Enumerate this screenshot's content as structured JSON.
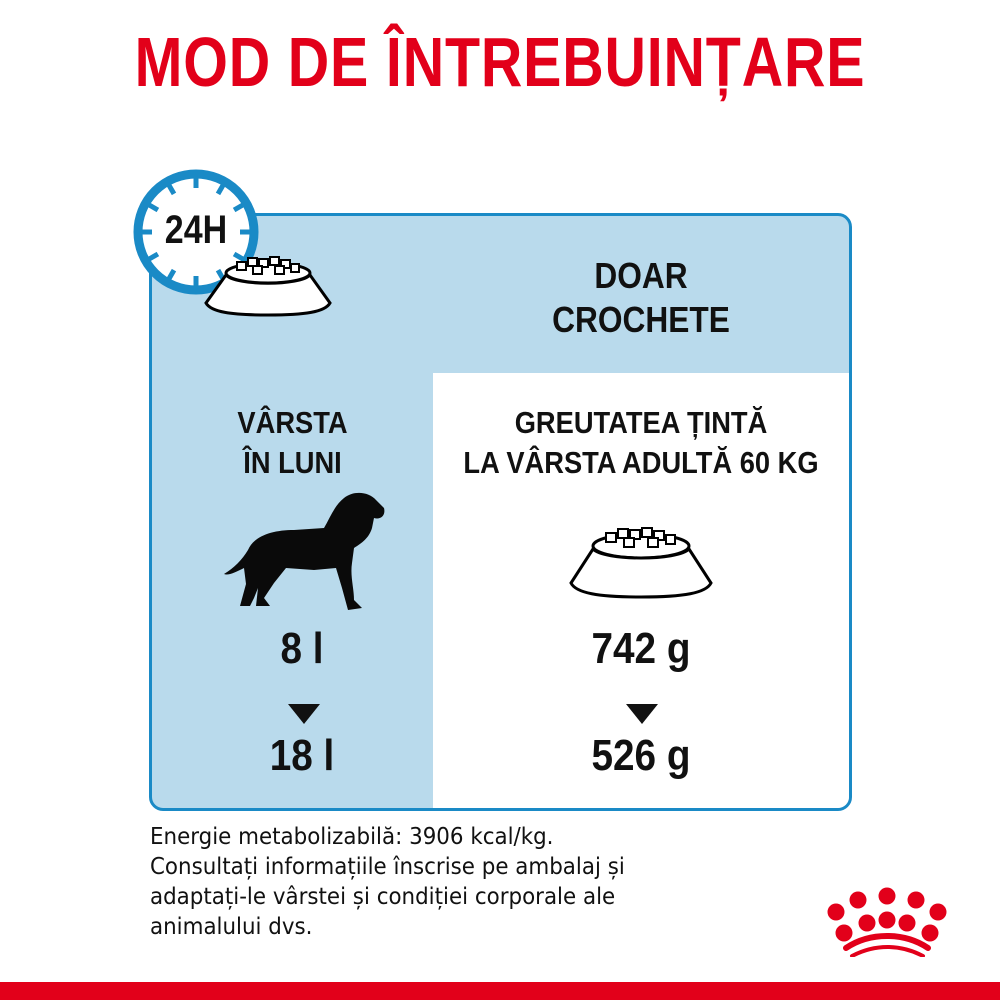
{
  "title": "MOD DE ÎNTREBUINȚARE",
  "clock_label": "24H",
  "food_type": [
    "DOAR",
    "CROCHETE"
  ],
  "age_header": [
    "VÂRSTA",
    "ÎN LUNI"
  ],
  "weight_header": [
    "GREUTATEA ȚINTĂ",
    "LA VÂRSTA ADULTĂ 60 KG"
  ],
  "rows": {
    "age_from": "8 l",
    "age_to": "18 l",
    "amount_from": "742 g",
    "amount_to": "526 g"
  },
  "footer_lines": [
    "Energie metabolizabilă: 3906 kcal/kg.",
    "Consultați informațiile înscrise pe ambalaj și",
    "adaptați-le vârstei și condiției corporale ale",
    "animalului dvs."
  ],
  "colors": {
    "brand_red": "#e2001a",
    "accent_blue": "#1a8ac6",
    "panel_blue": "#b9daec"
  },
  "icons": [
    "clock-24h-icon",
    "food-bowl-icon",
    "dog-silhouette-icon",
    "arrow-down-icon",
    "royal-canin-crown-logo"
  ]
}
